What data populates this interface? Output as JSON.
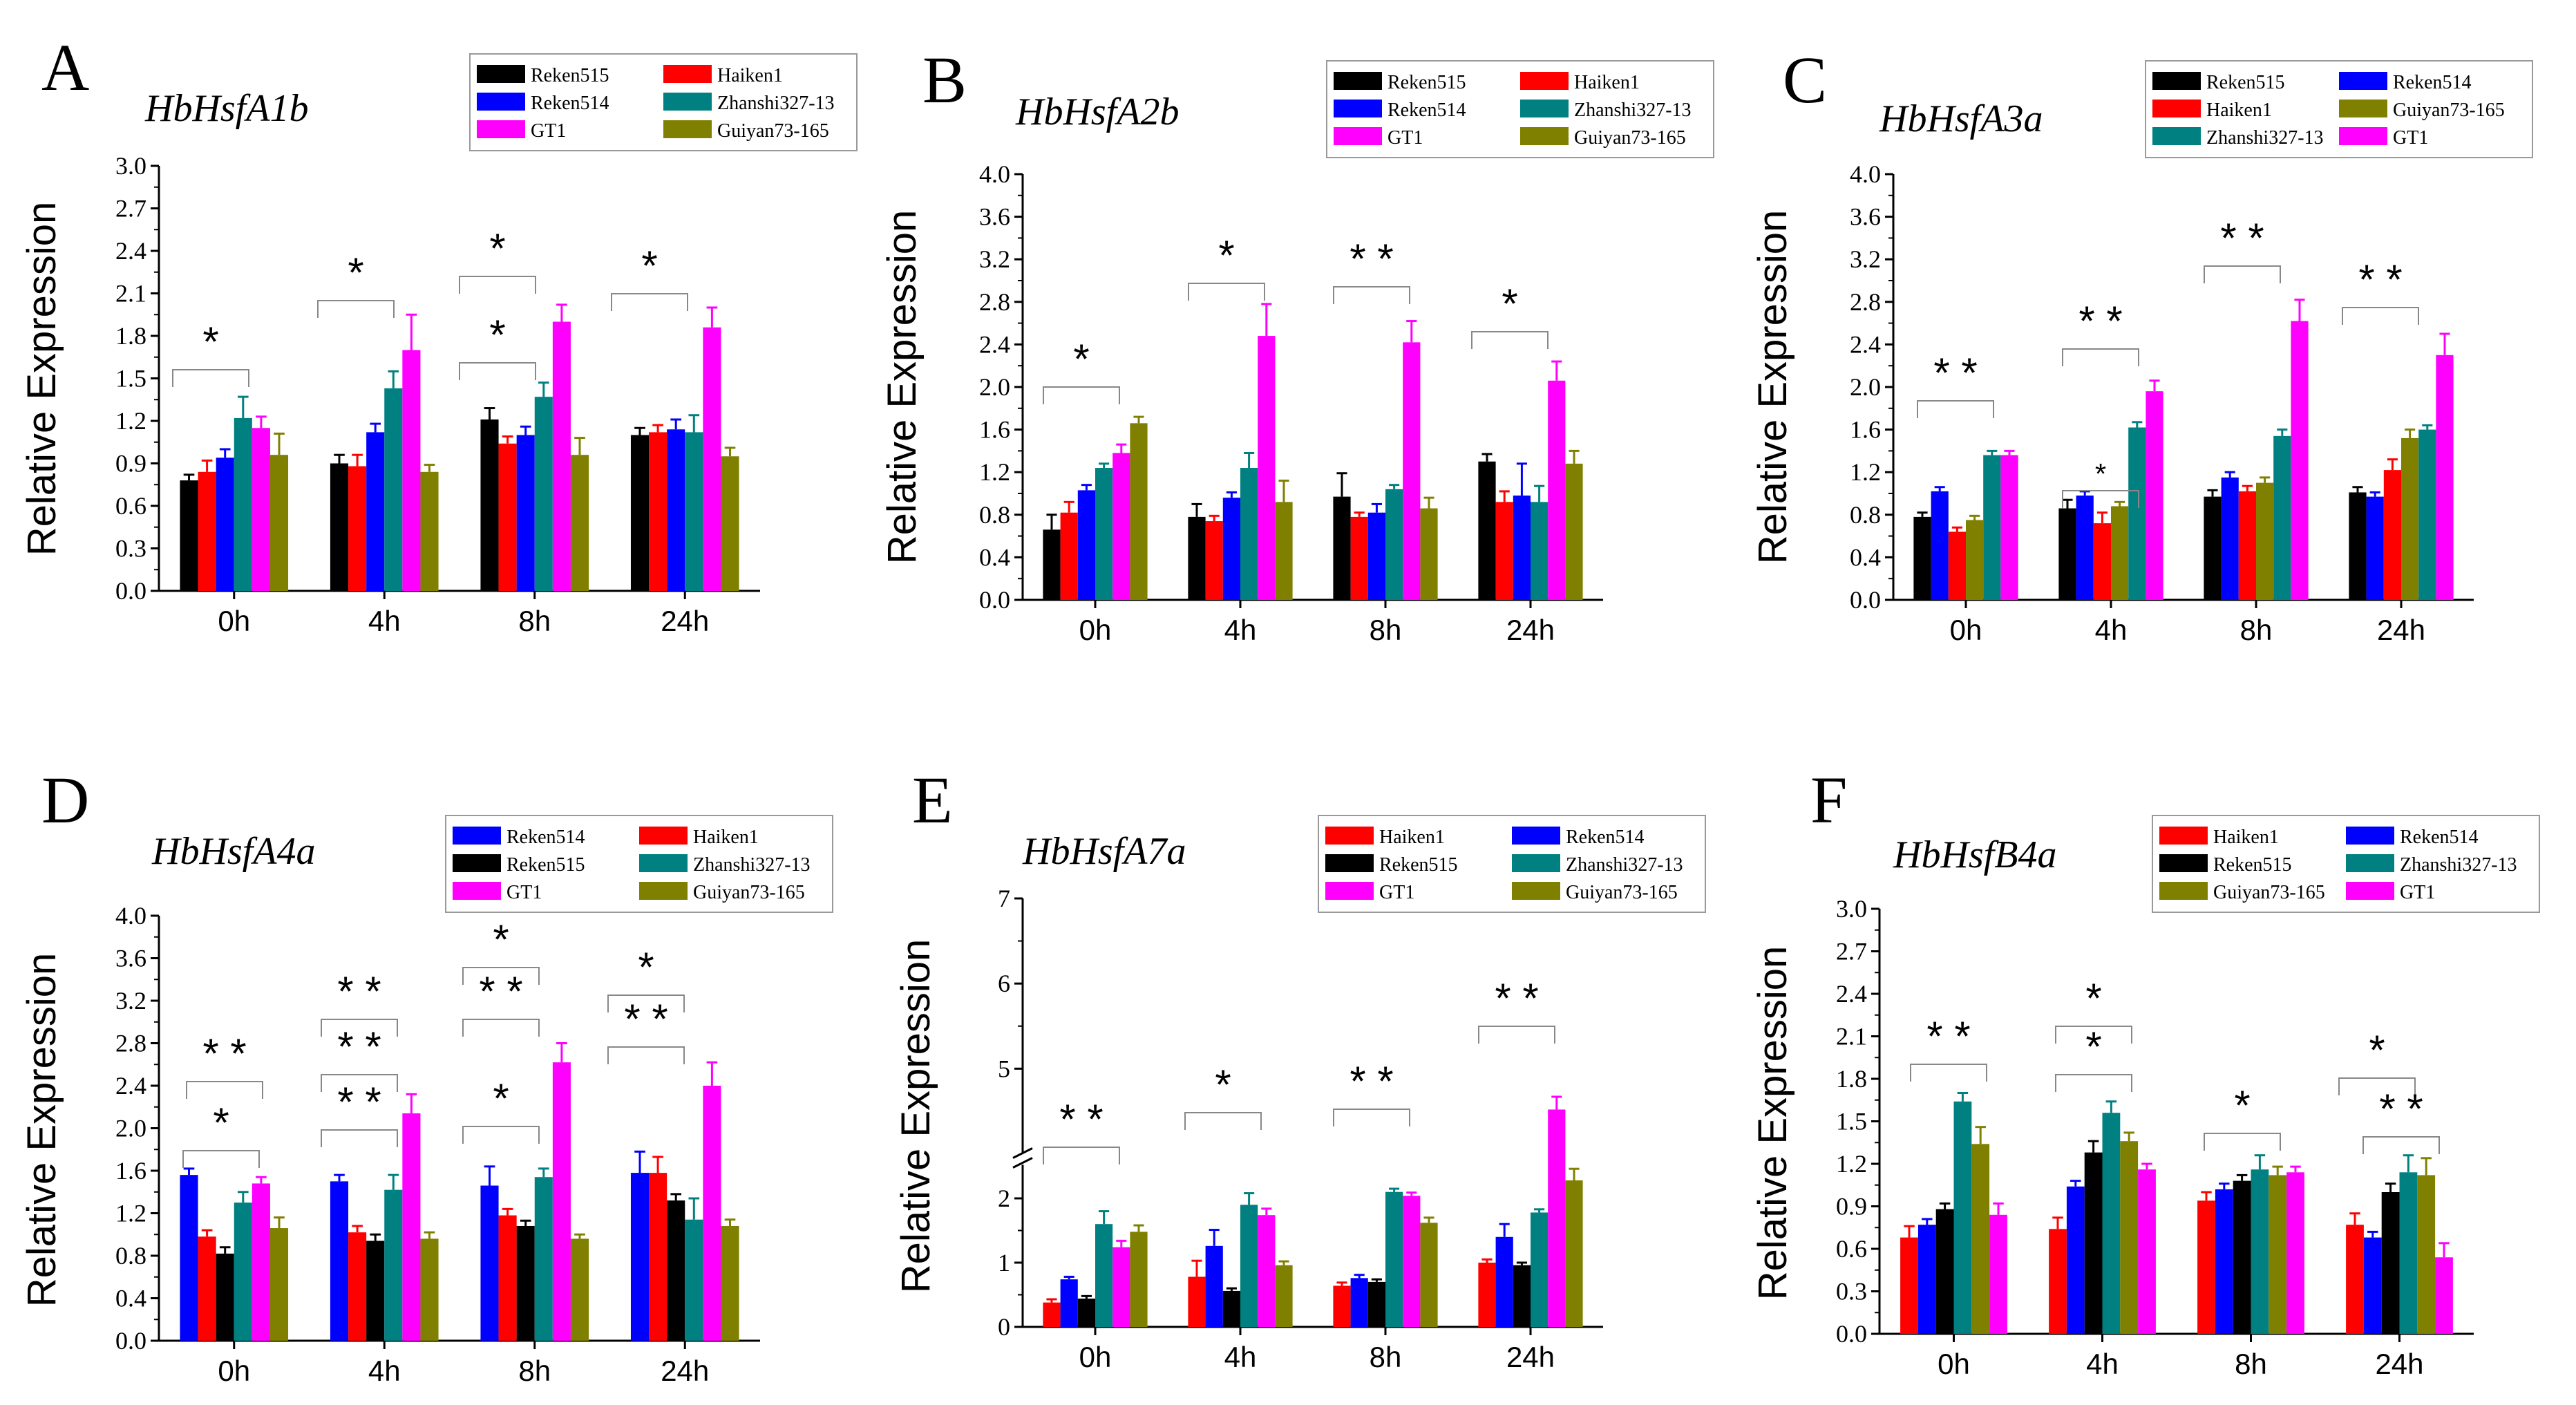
{
  "colors": {
    "Reken515": "#000000",
    "Haiken1": "#ff0000",
    "Reken514": "#0000ff",
    "Zhanshi327-13": "#008080",
    "GT1": "#ff00ff",
    "Guiyan73-165": "#808000"
  },
  "chart_data": [
    {
      "letter": "A",
      "type": "bar",
      "title": "HbHsfA1b",
      "ylabel": "Relative Expression",
      "xlabel": "",
      "categories": [
        "0h",
        "4h",
        "8h",
        "24h"
      ],
      "ylim": [
        0,
        3.0
      ],
      "yticks": [
        "0.0",
        "0.3",
        "0.6",
        "0.9",
        "1.2",
        "1.5",
        "1.8",
        "2.1",
        "2.4",
        "2.7",
        "3.0"
      ],
      "legend": [
        "Reken515",
        "Haiken1",
        "Reken514",
        "Zhanshi327-13",
        "GT1",
        "Guiyan73-165"
      ],
      "series": [
        {
          "name": "Reken515",
          "values": [
            0.78,
            0.9,
            1.21,
            1.1
          ],
          "errors": [
            0.04,
            0.06,
            0.08,
            0.05
          ]
        },
        {
          "name": "Haiken1",
          "values": [
            0.84,
            0.88,
            1.04,
            1.12
          ],
          "errors": [
            0.08,
            0.08,
            0.05,
            0.05
          ]
        },
        {
          "name": "Reken514",
          "values": [
            0.94,
            1.12,
            1.1,
            1.14
          ],
          "errors": [
            0.06,
            0.06,
            0.06,
            0.07
          ]
        },
        {
          "name": "Zhanshi327-13",
          "values": [
            1.22,
            1.43,
            1.37,
            1.12
          ],
          "errors": [
            0.15,
            0.12,
            0.1,
            0.12
          ]
        },
        {
          "name": "GT1",
          "values": [
            1.15,
            1.7,
            1.9,
            1.86
          ],
          "errors": [
            0.08,
            0.25,
            0.12,
            0.14
          ]
        },
        {
          "name": "Guiyan73-165",
          "values": [
            0.96,
            0.84,
            0.96,
            0.95
          ],
          "errors": [
            0.15,
            0.05,
            0.12,
            0.06
          ]
        }
      ],
      "annotations": [
        "*",
        "*",
        "*",
        "*",
        "*"
      ]
    },
    {
      "letter": "B",
      "type": "bar",
      "title": "HbHsfA2b",
      "ylabel": "Relative Expression",
      "xlabel": "",
      "categories": [
        "0h",
        "4h",
        "8h",
        "24h"
      ],
      "ylim": [
        0,
        4.0
      ],
      "yticks": [
        "0.0",
        "0.4",
        "0.8",
        "1.2",
        "1.6",
        "2.0",
        "2.4",
        "2.8",
        "3.2",
        "3.6",
        "4.0"
      ],
      "legend": [
        "Reken515",
        "Haiken1",
        "Reken514",
        "Zhanshi327-13",
        "GT1",
        "Guiyan73-165"
      ],
      "series": [
        {
          "name": "Reken515",
          "values": [
            0.66,
            0.78,
            0.97,
            1.3
          ],
          "errors": [
            0.14,
            0.12,
            0.22,
            0.07
          ]
        },
        {
          "name": "Haiken1",
          "values": [
            0.82,
            0.74,
            0.78,
            0.92
          ],
          "errors": [
            0.1,
            0.05,
            0.04,
            0.1
          ]
        },
        {
          "name": "Reken514",
          "values": [
            1.03,
            0.96,
            0.82,
            0.98
          ],
          "errors": [
            0.05,
            0.05,
            0.08,
            0.3
          ]
        },
        {
          "name": "Zhanshi327-13",
          "values": [
            1.24,
            1.24,
            1.04,
            0.92
          ],
          "errors": [
            0.04,
            0.14,
            0.04,
            0.15
          ]
        },
        {
          "name": "GT1",
          "values": [
            1.38,
            2.48,
            2.42,
            2.06
          ],
          "errors": [
            0.08,
            0.3,
            0.2,
            0.18
          ]
        },
        {
          "name": "Guiyan73-165",
          "values": [
            1.66,
            0.92,
            0.86,
            1.28
          ],
          "errors": [
            0.06,
            0.2,
            0.1,
            0.12
          ]
        }
      ],
      "annotations": [
        "*",
        "*",
        "* *",
        "*"
      ]
    },
    {
      "letter": "C",
      "type": "bar",
      "title": "HbHsfA3a",
      "ylabel": "Relative Expression",
      "xlabel": "",
      "categories": [
        "0h",
        "4h",
        "8h",
        "24h"
      ],
      "ylim": [
        0,
        4.0
      ],
      "yticks": [
        "0.0",
        "0.4",
        "0.8",
        "1.2",
        "1.6",
        "2.0",
        "2.4",
        "2.8",
        "3.2",
        "3.6",
        "4.0"
      ],
      "legend": [
        "Reken515",
        "Reken514",
        "Haiken1",
        "Guiyan73-165",
        "Zhanshi327-13",
        "GT1"
      ],
      "series": [
        {
          "name": "Reken515",
          "values": [
            0.78,
            0.86,
            0.97,
            1.01
          ],
          "errors": [
            0.04,
            0.08,
            0.06,
            0.05
          ]
        },
        {
          "name": "Reken514",
          "values": [
            1.02,
            0.98,
            1.15,
            0.97
          ],
          "errors": [
            0.04,
            0.04,
            0.05,
            0.04
          ]
        },
        {
          "name": "Haiken1",
          "values": [
            0.64,
            0.72,
            1.02,
            1.22
          ],
          "errors": [
            0.04,
            0.1,
            0.05,
            0.1
          ]
        },
        {
          "name": "Guiyan73-165",
          "values": [
            0.75,
            0.88,
            1.1,
            1.52
          ],
          "errors": [
            0.04,
            0.04,
            0.05,
            0.08
          ]
        },
        {
          "name": "Zhanshi327-13",
          "values": [
            1.36,
            1.62,
            1.54,
            1.6
          ],
          "errors": [
            0.04,
            0.05,
            0.06,
            0.04
          ]
        },
        {
          "name": "GT1",
          "values": [
            1.36,
            1.96,
            2.62,
            2.3
          ],
          "errors": [
            0.04,
            0.1,
            0.2,
            0.2
          ]
        }
      ],
      "annotations": [
        "* *",
        "* *",
        "*",
        "* *",
        "* *"
      ]
    },
    {
      "letter": "D",
      "type": "bar",
      "title": "HbHsfA4a",
      "ylabel": "Relative Expression",
      "xlabel": "",
      "categories": [
        "0h",
        "4h",
        "8h",
        "24h"
      ],
      "ylim": [
        0,
        4.0
      ],
      "yticks": [
        "0.0",
        "0.4",
        "0.8",
        "1.2",
        "1.6",
        "2.0",
        "2.4",
        "2.8",
        "3.2",
        "3.6",
        "4.0"
      ],
      "legend": [
        "Reken514",
        "Haiken1",
        "Reken515",
        "Zhanshi327-13",
        "GT1",
        "Guiyan73-165"
      ],
      "series": [
        {
          "name": "Reken514",
          "values": [
            1.56,
            1.5,
            1.46,
            1.58
          ],
          "errors": [
            0.06,
            0.06,
            0.18,
            0.2
          ]
        },
        {
          "name": "Haiken1",
          "values": [
            0.98,
            1.02,
            1.18,
            1.58
          ],
          "errors": [
            0.06,
            0.06,
            0.06,
            0.15
          ]
        },
        {
          "name": "Reken515",
          "values": [
            0.82,
            0.94,
            1.08,
            1.32
          ],
          "errors": [
            0.06,
            0.06,
            0.05,
            0.06
          ]
        },
        {
          "name": "Zhanshi327-13",
          "values": [
            1.3,
            1.42,
            1.54,
            1.14
          ],
          "errors": [
            0.1,
            0.14,
            0.08,
            0.2
          ]
        },
        {
          "name": "GT1",
          "values": [
            1.48,
            2.14,
            2.62,
            2.4
          ],
          "errors": [
            0.06,
            0.18,
            0.18,
            0.22
          ]
        },
        {
          "name": "Guiyan73-165",
          "values": [
            1.06,
            0.96,
            0.96,
            1.08
          ],
          "errors": [
            0.1,
            0.06,
            0.04,
            0.06
          ]
        }
      ],
      "annotations": [
        "* *",
        "*",
        "* *",
        "* *",
        "* *",
        "*",
        "* *",
        "*",
        "* *",
        "*"
      ]
    },
    {
      "letter": "E",
      "type": "bar",
      "title": "HbHsfA7a",
      "ylabel": "Relative Expression",
      "xlabel": "",
      "categories": [
        "0h",
        "4h",
        "8h",
        "24h"
      ],
      "ylim": [
        0,
        7
      ],
      "axis_break": [
        2.5,
        4
      ],
      "yticks": [
        "0",
        "1",
        "2",
        "5",
        "6",
        "7"
      ],
      "legend": [
        "Haiken1",
        "Reken514",
        "Reken515",
        "Zhanshi327-13",
        "GT1",
        "Guiyan73-165"
      ],
      "series": [
        {
          "name": "Haiken1",
          "values": [
            0.38,
            0.78,
            0.64,
            1.0
          ],
          "errors": [
            0.05,
            0.25,
            0.05,
            0.05
          ]
        },
        {
          "name": "Reken514",
          "values": [
            0.74,
            1.26,
            0.76,
            1.4
          ],
          "errors": [
            0.04,
            0.25,
            0.05,
            0.2
          ]
        },
        {
          "name": "Reken515",
          "values": [
            0.44,
            0.56,
            0.7,
            0.96
          ],
          "errors": [
            0.04,
            0.04,
            0.04,
            0.04
          ]
        },
        {
          "name": "Zhanshi327-13",
          "values": [
            1.6,
            1.9,
            2.1,
            1.78
          ],
          "errors": [
            0.2,
            0.18,
            0.05,
            0.05
          ]
        },
        {
          "name": "GT1",
          "values": [
            1.24,
            1.74,
            2.04,
            4.52
          ],
          "errors": [
            0.1,
            0.1,
            0.05,
            0.15
          ]
        },
        {
          "name": "Guiyan73-165",
          "values": [
            1.48,
            0.96,
            1.62,
            2.28
          ],
          "errors": [
            0.1,
            0.06,
            0.08,
            0.18
          ]
        }
      ],
      "annotations": [
        "* *",
        "*",
        "* *",
        "* *"
      ]
    },
    {
      "letter": "F",
      "type": "bar",
      "title": "HbHsfB4a",
      "ylabel": "Relative Expression",
      "xlabel": "",
      "categories": [
        "0h",
        "4h",
        "8h",
        "24h"
      ],
      "ylim": [
        0,
        3.0
      ],
      "yticks": [
        "0.0",
        "0.3",
        "0.6",
        "0.9",
        "1.2",
        "1.5",
        "1.8",
        "2.1",
        "2.4",
        "2.7",
        "3.0"
      ],
      "legend": [
        "Haiken1",
        "Reken514",
        "Reken515",
        "Zhanshi327-13",
        "Guiyan73-165",
        "GT1"
      ],
      "series": [
        {
          "name": "Haiken1",
          "values": [
            0.68,
            0.74,
            0.94,
            0.77
          ],
          "errors": [
            0.08,
            0.08,
            0.06,
            0.08
          ]
        },
        {
          "name": "Reken514",
          "values": [
            0.77,
            1.04,
            1.02,
            0.68
          ],
          "errors": [
            0.04,
            0.04,
            0.04,
            0.04
          ]
        },
        {
          "name": "Reken515",
          "values": [
            0.88,
            1.28,
            1.08,
            1.0
          ],
          "errors": [
            0.04,
            0.08,
            0.04,
            0.06
          ]
        },
        {
          "name": "Zhanshi327-13",
          "values": [
            1.64,
            1.56,
            1.16,
            1.14
          ],
          "errors": [
            0.06,
            0.08,
            0.1,
            0.12
          ]
        },
        {
          "name": "Guiyan73-165",
          "values": [
            1.34,
            1.36,
            1.12,
            1.12
          ],
          "errors": [
            0.12,
            0.06,
            0.06,
            0.12
          ]
        },
        {
          "name": "GT1",
          "values": [
            0.84,
            1.16,
            1.14,
            0.54
          ],
          "errors": [
            0.08,
            0.04,
            0.04,
            0.1
          ]
        }
      ],
      "annotations": [
        "* *",
        "*",
        "*",
        "*",
        "*",
        "* *"
      ]
    }
  ]
}
